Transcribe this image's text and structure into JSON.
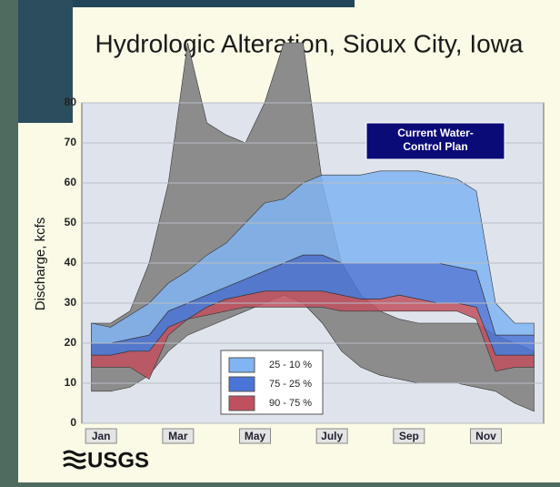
{
  "chart_data": {
    "type": "band",
    "title": "Hydrologic Alteration, Sioux City, Iowa",
    "y_label": "Discharge, kcfs",
    "annotation": [
      "Current Water-",
      "Control Plan"
    ],
    "logo": "USGS",
    "categories": [
      "Jan",
      null,
      null,
      null,
      "Mar",
      null,
      null,
      null,
      "May",
      null,
      null,
      null,
      "July",
      null,
      null,
      null,
      "Sep",
      null,
      null,
      null,
      "Nov",
      null,
      null,
      null
    ],
    "ylim": [
      0,
      80
    ],
    "yticks": [
      0,
      10,
      20,
      30,
      40,
      50,
      60,
      70,
      80
    ],
    "series": [
      {
        "color": "#8c8c8c",
        "high": [
          25,
          25,
          28,
          40,
          60,
          95,
          75,
          72,
          70,
          80,
          95,
          95,
          60,
          40,
          32,
          28,
          26,
          25,
          25,
          25,
          25,
          22,
          20,
          18
        ],
        "low": [
          8,
          8,
          9,
          12,
          18,
          22,
          24,
          26,
          28,
          30,
          32,
          30,
          25,
          18,
          14,
          12,
          11,
          10,
          10,
          10,
          9,
          8,
          5,
          3
        ]
      },
      {
        "name": "25 - 10 %",
        "color": "#80b4f2",
        "high": [
          25,
          24,
          27,
          30,
          35,
          38,
          42,
          45,
          50,
          55,
          56,
          60,
          62,
          62,
          62,
          63,
          63,
          63,
          62,
          61,
          58,
          30,
          25,
          25
        ],
        "low": [
          20,
          20,
          21,
          22,
          28,
          30,
          32,
          34,
          36,
          38,
          40,
          42,
          42,
          40,
          40,
          40,
          40,
          40,
          40,
          39,
          38,
          22,
          22,
          22
        ]
      },
      {
        "name": "75 - 25 %",
        "color": "#4a74d6",
        "high": [
          20,
          20,
          21,
          22,
          28,
          30,
          32,
          34,
          36,
          38,
          40,
          42,
          42,
          40,
          40,
          40,
          40,
          40,
          40,
          39,
          38,
          22,
          22,
          22
        ],
        "low": [
          17,
          17,
          18,
          18,
          24,
          26,
          29,
          31,
          32,
          33,
          33,
          33,
          33,
          32,
          31,
          31,
          32,
          31,
          30,
          30,
          29,
          17,
          17,
          17
        ]
      },
      {
        "name": "90 - 75 %",
        "color": "#c0505e",
        "high": [
          17,
          17,
          18,
          18,
          24,
          26,
          29,
          31,
          32,
          33,
          33,
          33,
          33,
          32,
          31,
          31,
          32,
          31,
          30,
          30,
          29,
          17,
          17,
          17
        ],
        "low": [
          14,
          14,
          14,
          11,
          22,
          26,
          27,
          28,
          29,
          29,
          29,
          29,
          29,
          28,
          28,
          28,
          28,
          28,
          28,
          28,
          26,
          13,
          14,
          14
        ]
      }
    ]
  }
}
